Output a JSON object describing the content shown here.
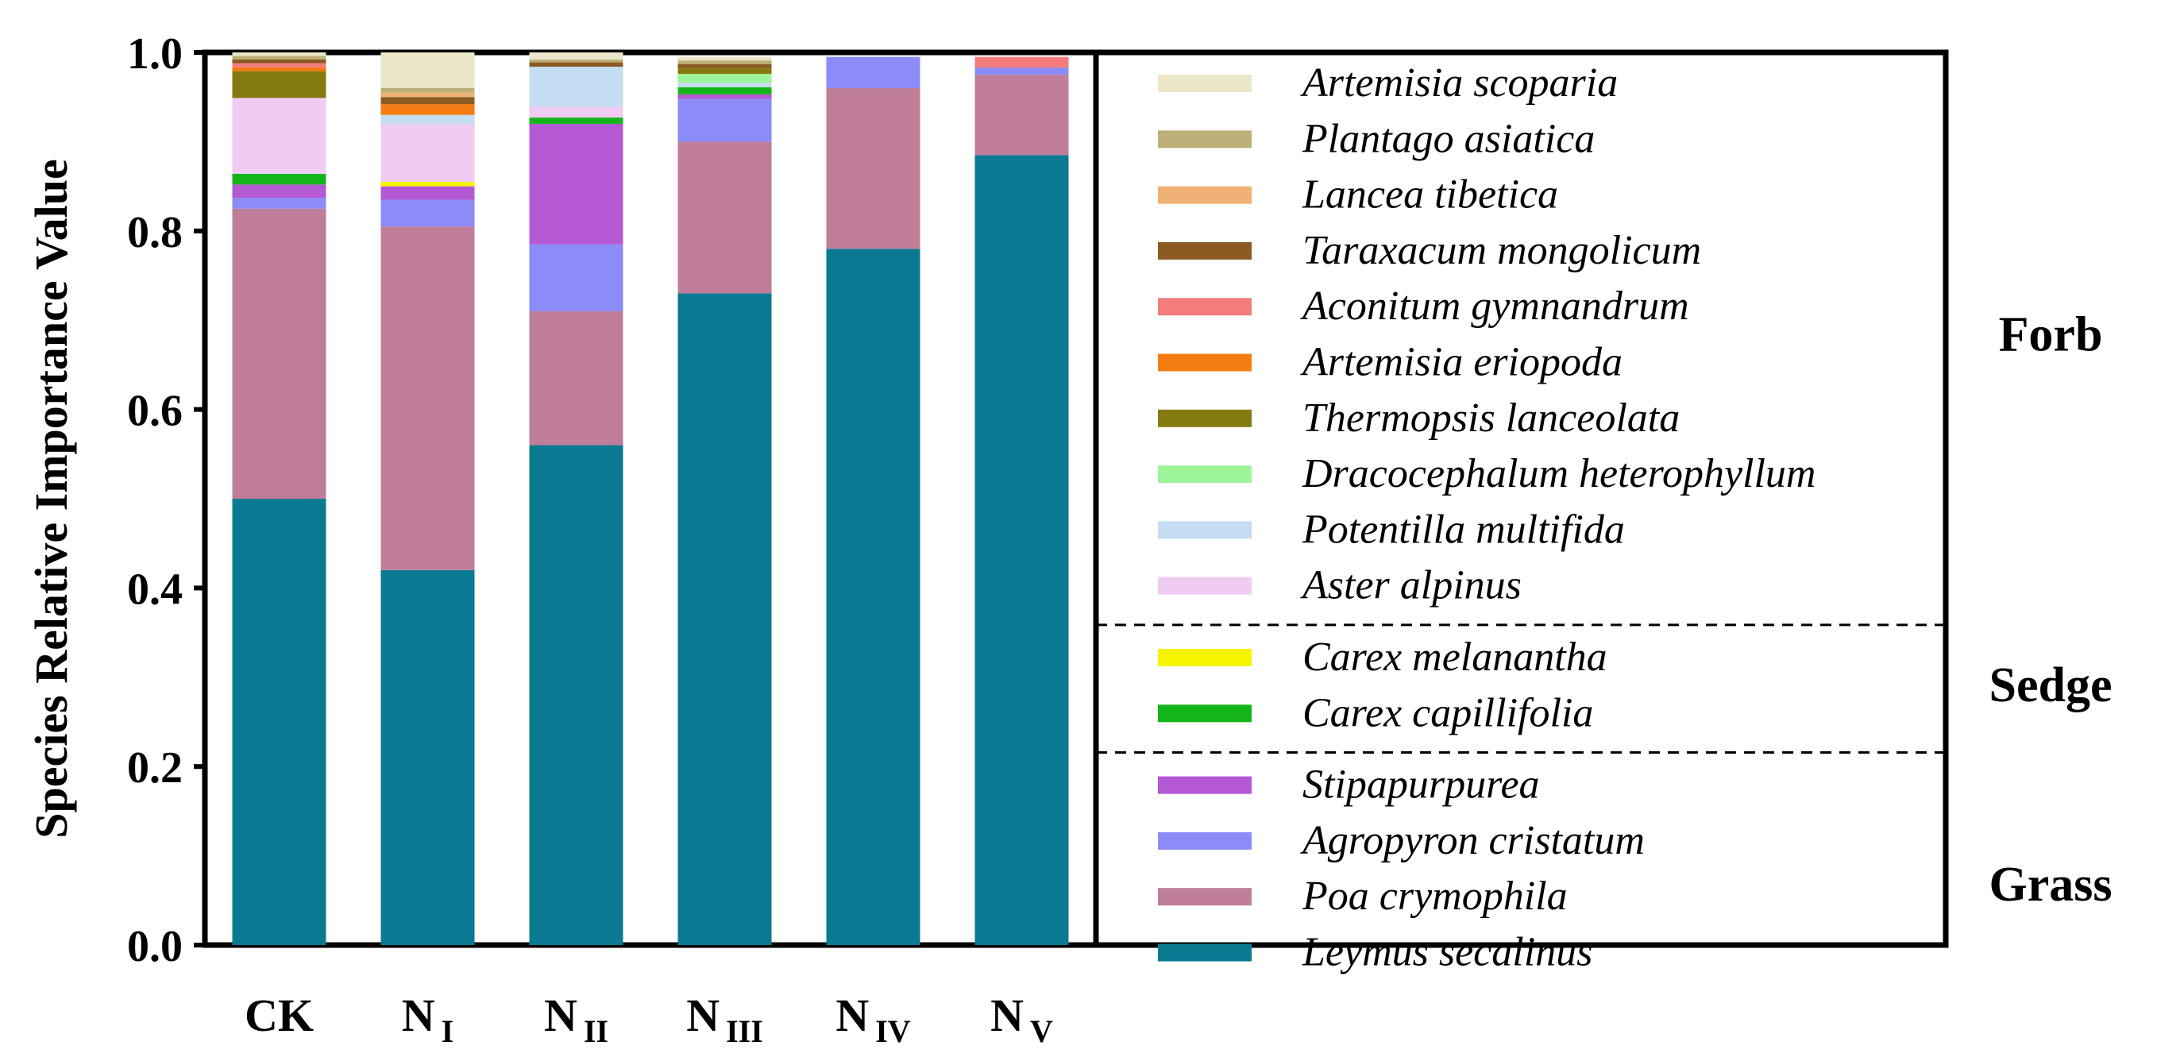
{
  "chart_data": {
    "type": "bar",
    "stacked": true,
    "ylabel": "Species Relative Importance Value",
    "ylim": [
      0,
      1.0
    ],
    "yticks": [
      "0.0",
      "0.2",
      "0.4",
      "0.6",
      "0.8",
      "1.0"
    ],
    "categories": [
      {
        "label": "CK",
        "base": "CK",
        "sub": ""
      },
      {
        "label": "N I",
        "base": "N",
        "sub": "I"
      },
      {
        "label": "N II",
        "base": "N",
        "sub": "II"
      },
      {
        "label": "N III",
        "base": "N",
        "sub": "III"
      },
      {
        "label": "N IV",
        "base": "N",
        "sub": "IV"
      },
      {
        "label": "N V",
        "base": "N",
        "sub": "V"
      }
    ],
    "series": [
      {
        "name": "Leymus secalinus",
        "group": "Grass",
        "color": "#0a7a93",
        "values": [
          0.5,
          0.42,
          0.56,
          0.73,
          0.78,
          0.885
        ]
      },
      {
        "name": "Poa crymophila",
        "group": "Grass",
        "color": "#c07d9a",
        "values": [
          0.325,
          0.385,
          0.15,
          0.17,
          0.18,
          0.09
        ]
      },
      {
        "name": "Agropyron cristatum",
        "group": "Grass",
        "color": "#8b8cf8",
        "values": [
          0.012,
          0.03,
          0.075,
          0.048,
          0.035,
          0.008
        ]
      },
      {
        "name": "Stipapurpurea",
        "group": "Grass",
        "color": "#b458d4",
        "values": [
          0.015,
          0.015,
          0.135,
          0.005,
          0.0,
          0.0
        ]
      },
      {
        "name": "Carex capillifolia",
        "group": "Sedge",
        "color": "#13b51a",
        "values": [
          0.012,
          0.0,
          0.007,
          0.008,
          0.0,
          0.0
        ]
      },
      {
        "name": "Carex melanantha",
        "group": "Sedge",
        "color": "#f5f500",
        "values": [
          0.0,
          0.005,
          0.0,
          0.0,
          0.0,
          0.0
        ]
      },
      {
        "name": "Aster alpinus",
        "group": "Forb",
        "color": "#f0cbf2",
        "values": [
          0.085,
          0.065,
          0.012,
          0.0,
          0.0,
          0.0
        ]
      },
      {
        "name": "Potentilla multifida",
        "group": "Forb",
        "color": "#c5dcf3",
        "values": [
          0.0,
          0.01,
          0.045,
          0.005,
          0.0,
          0.0
        ]
      },
      {
        "name": "Dracocephalum heterophyllum",
        "group": "Forb",
        "color": "#9df59a",
        "values": [
          0.0,
          0.0,
          0.0,
          0.01,
          0.0,
          0.0
        ]
      },
      {
        "name": "Thermopsis lanceolata",
        "group": "Forb",
        "color": "#857a10",
        "values": [
          0.03,
          0.0,
          0.0,
          0.006,
          0.0,
          0.0
        ]
      },
      {
        "name": "Artemisia eriopoda",
        "group": "Forb",
        "color": "#f57c10",
        "values": [
          0.004,
          0.012,
          0.0,
          0.0,
          0.0,
          0.0
        ]
      },
      {
        "name": "Aconitum gymnandrum",
        "group": "Forb",
        "color": "#f57c7c",
        "values": [
          0.005,
          0.0,
          0.0,
          0.0,
          0.0,
          0.012
        ]
      },
      {
        "name": "Taraxacum mongolicum",
        "group": "Forb",
        "color": "#8c5a23",
        "values": [
          0.004,
          0.008,
          0.005,
          0.005,
          0.0,
          0.0
        ]
      },
      {
        "name": "Lancea tibetica",
        "group": "Forb",
        "color": "#f0b274",
        "values": [
          0.0,
          0.005,
          0.0,
          0.0,
          0.0,
          0.0
        ]
      },
      {
        "name": "Plantago asiatica",
        "group": "Forb",
        "color": "#bcb078",
        "values": [
          0.004,
          0.005,
          0.003,
          0.004,
          0.0,
          0.0
        ]
      },
      {
        "name": "Artemisia scoparia",
        "group": "Forb",
        "color": "#ece6c8",
        "values": [
          0.004,
          0.04,
          0.008,
          0.004,
          0.0,
          0.0
        ]
      }
    ],
    "legend_order": [
      "Artemisia scoparia",
      "Plantago asiatica",
      "Lancea tibetica",
      "Taraxacum mongolicum",
      "Aconitum gymnandrum",
      "Artemisia eriopoda",
      "Thermopsis lanceolata",
      "Dracocephalum heterophyllum",
      "Potentilla multifida",
      "Aster alpinus",
      "Carex melanantha",
      "Carex capillifolia",
      "Stipapurpurea",
      "Agropyron cristatum",
      "Poa crymophila",
      "Leymus secalinus"
    ],
    "groups": [
      {
        "label": "Forb",
        "count": 10
      },
      {
        "label": "Sedge",
        "count": 2
      },
      {
        "label": "Grass",
        "count": 4
      }
    ],
    "legend_placement": "right"
  }
}
